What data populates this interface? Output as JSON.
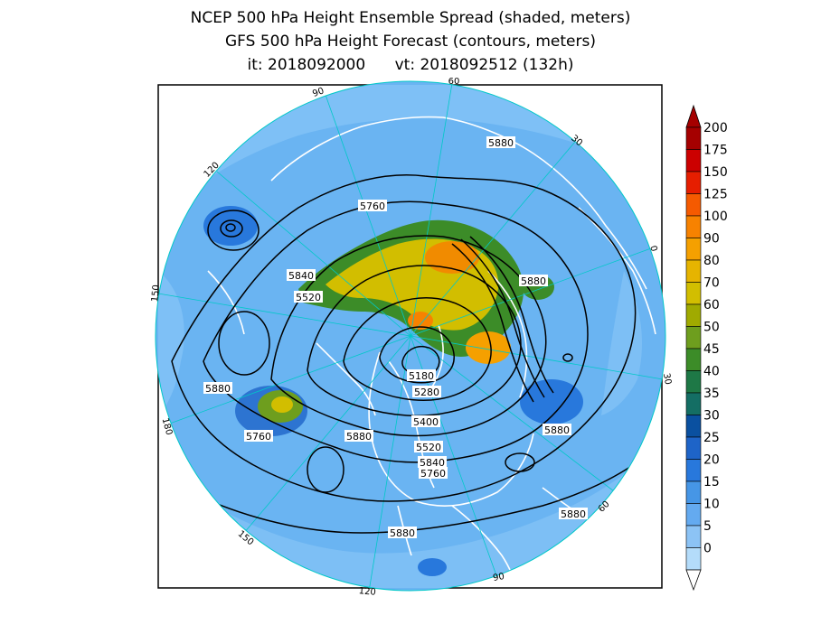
{
  "title": {
    "line1": "NCEP 500 hPa Height Ensemble Spread (shaded, meters)",
    "line2": "GFS 500 hPa Height Forecast (contours, meters)",
    "line3": "it: 2018092000      vt: 2018092512 (132h)"
  },
  "contour_labels": [
    {
      "text": "5880",
      "role": "ridge-north"
    },
    {
      "text": "5760",
      "role": "upper-left"
    },
    {
      "text": "5840",
      "role": "left-outer"
    },
    {
      "text": "5520",
      "role": "left-inner"
    },
    {
      "text": "5880",
      "role": "atlantic-europe"
    },
    {
      "text": "5880",
      "role": "pacific-west"
    },
    {
      "text": "5180",
      "role": "pole-low"
    },
    {
      "text": "5280",
      "role": "pole-ring"
    },
    {
      "text": "5400",
      "role": "trough-1"
    },
    {
      "text": "5520",
      "role": "trough-2"
    },
    {
      "text": "5840",
      "role": "trough-3"
    },
    {
      "text": "5760",
      "role": "trough-4"
    },
    {
      "text": "5760",
      "role": "pacific-southwest"
    },
    {
      "text": "5880",
      "role": "north-pacific"
    },
    {
      "text": "5880",
      "role": "atlantic-east"
    },
    {
      "text": "5880",
      "role": "southeast"
    },
    {
      "text": "5880",
      "role": "bottom"
    }
  ],
  "longitude_labels": [
    "60",
    "30",
    "0",
    "30",
    "60",
    "90",
    "120",
    "150",
    "180",
    "150",
    "120",
    "90"
  ],
  "colorbar": {
    "ticks": [
      "200",
      "175",
      "150",
      "125",
      "100",
      "90",
      "80",
      "70",
      "60",
      "50",
      "45",
      "40",
      "35",
      "30",
      "25",
      "20",
      "15",
      "10",
      "5",
      "0"
    ],
    "colors": [
      "#a50000",
      "#cc0000",
      "#e61e00",
      "#f55a00",
      "#f78200",
      "#f5a000",
      "#e6b400",
      "#d2be00",
      "#a0aa00",
      "#6e9e1e",
      "#3c8c28",
      "#1e7846",
      "#146e64",
      "#0a50a0",
      "#1e64c8",
      "#2878dc",
      "#4696e6",
      "#64aaf0",
      "#8cc3f5",
      "#b4dcfa"
    ],
    "top_arrow_color": "#a50000",
    "bottom_arrow_color": "#ffffff"
  },
  "colors": {
    "ocean_base": "#6ab4f2",
    "ocean_outer": "#8cc8f8",
    "high_spread": "#d2be00",
    "very_high_spread": "#f78200",
    "mid_spread": "#3c8c28",
    "coast": "#ffffff",
    "grid": "#00c8c8",
    "contour": "#000000"
  }
}
